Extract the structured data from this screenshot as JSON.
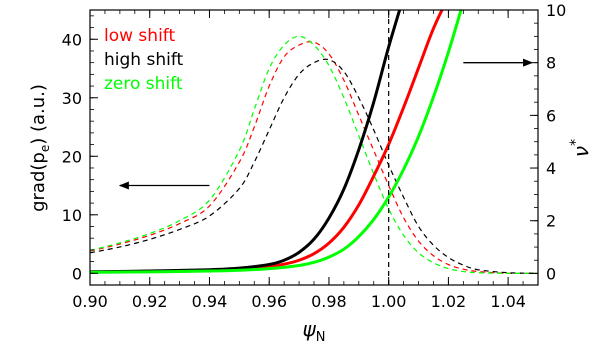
{
  "chart_data": {
    "type": "line",
    "xlabel": "ψ",
    "xlabel_sub": "N",
    "ylabel_left": "grad(p",
    "ylabel_left_sub": "e",
    "ylabel_left_tail": ") (a.u.)",
    "ylabel_right": "ν",
    "ylabel_right_sup": "*",
    "xlim": [
      0.9,
      1.05
    ],
    "ylim_left": [
      -2,
      45
    ],
    "ylim_right": [
      -0.44,
      10
    ],
    "x_ticks": [
      0.9,
      0.92,
      0.94,
      0.96,
      0.98,
      1.0,
      1.02,
      1.04
    ],
    "x_tick_labels": [
      "0.90",
      "0.92",
      "0.94",
      "0.96",
      "0.98",
      "1.00",
      "1.02",
      "1.04"
    ],
    "y_left_ticks": [
      0,
      10,
      20,
      30,
      40
    ],
    "y_left_tick_labels": [
      "0",
      "10",
      "20",
      "30",
      "40"
    ],
    "y_right_ticks": [
      0,
      2,
      4,
      6,
      8,
      10
    ],
    "y_right_tick_labels": [
      "0",
      "2",
      "4",
      "6",
      "8",
      "10"
    ],
    "grid": false,
    "legend_position": "top-left",
    "separatrix_x": 1.0,
    "series": [
      {
        "name": "low shift",
        "color": "#ff0000",
        "axis": "left",
        "style": "dashed",
        "x": [
          0.9,
          0.91,
          0.92,
          0.93,
          0.94,
          0.95,
          0.955,
          0.96,
          0.965,
          0.97,
          0.975,
          0.98,
          0.985,
          0.99,
          0.995,
          1.0,
          1.005,
          1.01,
          1.015,
          1.02,
          1.025,
          1.03,
          1.04,
          1.05
        ],
        "values": [
          3.8,
          5.0,
          6.5,
          8.5,
          11.5,
          19.0,
          25.0,
          32.0,
          37.0,
          39.0,
          39.5,
          37.5,
          33.0,
          27.0,
          21.0,
          15.0,
          9.5,
          5.5,
          3.0,
          1.5,
          0.7,
          0.3,
          0.0,
          0.0
        ]
      },
      {
        "name": "high shift",
        "color": "#000000",
        "axis": "left",
        "style": "dashed",
        "x": [
          0.9,
          0.91,
          0.92,
          0.93,
          0.94,
          0.95,
          0.955,
          0.96,
          0.965,
          0.97,
          0.975,
          0.98,
          0.985,
          0.99,
          0.995,
          1.0,
          1.005,
          1.01,
          1.015,
          1.02,
          1.025,
          1.03,
          1.04,
          1.05
        ],
        "values": [
          3.5,
          4.5,
          5.8,
          7.5,
          9.8,
          14.5,
          19.0,
          24.5,
          30.0,
          34.0,
          36.0,
          36.5,
          34.5,
          30.0,
          24.5,
          18.5,
          13.0,
          8.0,
          4.8,
          2.7,
          1.4,
          0.6,
          0.1,
          0.0
        ]
      },
      {
        "name": "zero shift",
        "color": "#00ff00",
        "axis": "left",
        "style": "dashed",
        "x": [
          0.9,
          0.91,
          0.92,
          0.93,
          0.94,
          0.95,
          0.955,
          0.96,
          0.965,
          0.97,
          0.975,
          0.98,
          0.985,
          0.99,
          0.995,
          1.0,
          1.005,
          1.01,
          1.015,
          1.02,
          1.025,
          1.03,
          1.04,
          1.05
        ],
        "values": [
          3.9,
          5.2,
          6.8,
          9.0,
          12.5,
          21.0,
          28.0,
          35.0,
          39.0,
          40.5,
          39.0,
          35.5,
          30.0,
          23.5,
          17.0,
          11.0,
          6.5,
          3.5,
          1.8,
          0.8,
          0.3,
          0.1,
          0.0,
          0.0
        ]
      },
      {
        "name": "low shift",
        "color": "#ff0000",
        "axis": "right",
        "style": "solid",
        "x": [
          0.9,
          0.92,
          0.94,
          0.95,
          0.96,
          0.965,
          0.97,
          0.975,
          0.98,
          0.985,
          0.99,
          0.995,
          1.0,
          1.005,
          1.01,
          1.015,
          1.02
        ],
        "values": [
          0.05,
          0.08,
          0.12,
          0.17,
          0.26,
          0.35,
          0.5,
          0.75,
          1.15,
          1.75,
          2.6,
          3.7,
          4.9,
          6.3,
          7.8,
          9.3,
          10.5
        ]
      },
      {
        "name": "high shift",
        "color": "#000000",
        "axis": "right",
        "style": "solid",
        "x": [
          0.9,
          0.92,
          0.94,
          0.95,
          0.96,
          0.965,
          0.97,
          0.975,
          0.98,
          0.985,
          0.99,
          0.995,
          1.0,
          1.005
        ],
        "values": [
          0.06,
          0.09,
          0.14,
          0.2,
          0.34,
          0.5,
          0.8,
          1.3,
          2.1,
          3.2,
          4.7,
          6.5,
          8.6,
          10.5
        ]
      },
      {
        "name": "zero shift",
        "color": "#00ff00",
        "axis": "right",
        "style": "solid",
        "x": [
          0.9,
          0.92,
          0.94,
          0.95,
          0.96,
          0.97,
          0.975,
          0.98,
          0.985,
          0.99,
          0.995,
          1.0,
          1.005,
          1.01,
          1.015,
          1.02,
          1.025
        ],
        "values": [
          0.04,
          0.06,
          0.09,
          0.12,
          0.18,
          0.3,
          0.42,
          0.62,
          0.92,
          1.4,
          2.05,
          2.9,
          3.95,
          5.2,
          6.7,
          8.4,
          10.3
        ]
      }
    ],
    "arrows": [
      {
        "name": "left-axis-arrow",
        "direction": "left",
        "x_from": 0.94,
        "x_to": 0.91,
        "y_left": 15.0
      },
      {
        "name": "right-axis-arrow",
        "direction": "right",
        "x_from": 1.025,
        "x_to": 1.048,
        "y_right": 8.0
      }
    ]
  }
}
